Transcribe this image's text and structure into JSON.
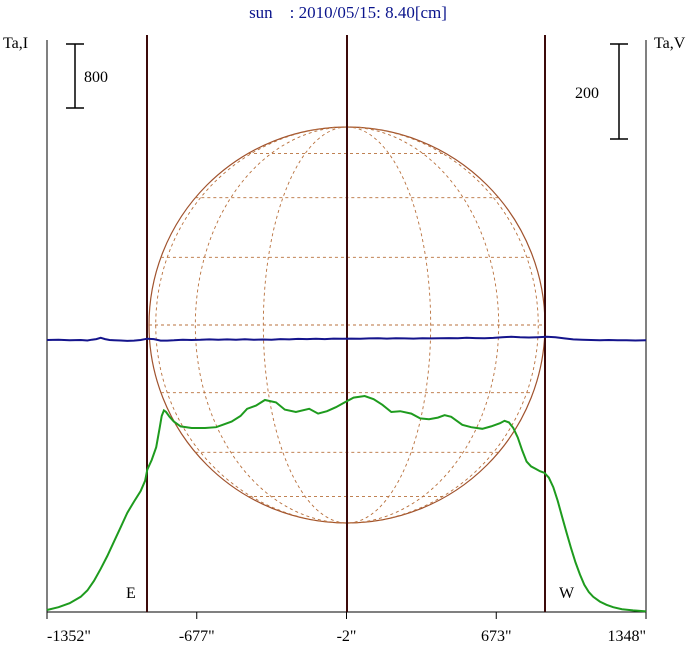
{
  "chart_data": {
    "type": "line",
    "title": "sun    : 2010/05/15: 8.40[cm]",
    "left_axis_label": "Ta,I",
    "right_axis_label": "Ta,V",
    "x_unit": "arcsec",
    "x_ticks": [
      {
        "value": -1352,
        "label": "-1352\""
      },
      {
        "value": -677,
        "label": "-677\""
      },
      {
        "value": -2,
        "label": "-2\""
      },
      {
        "value": 673,
        "label": "673\""
      },
      {
        "value": 1348,
        "label": "1348\""
      }
    ],
    "xlim": [
      -1352,
      1348
    ],
    "scale_bars": [
      {
        "side": "left",
        "label": "800",
        "value": 800
      },
      {
        "side": "right",
        "label": "200",
        "value": 200
      }
    ],
    "limb_markers": [
      {
        "label": "E",
        "x": -894
      },
      {
        "label": "W",
        "x": 894
      }
    ],
    "center_line_x": -2,
    "series": [
      {
        "axis": "I",
        "color": "#1e9b1e",
        "x": [
          -1352,
          -1300,
          -1250,
          -1200,
          -1170,
          -1140,
          -1110,
          -1080,
          -1050,
          -1020,
          -990,
          -960,
          -930,
          -910,
          -900,
          -880,
          -860,
          -845,
          -835,
          -825,
          -815,
          -800,
          -780,
          -750,
          -700,
          -640,
          -590,
          -560,
          -520,
          -480,
          -450,
          -410,
          -370,
          -320,
          -280,
          -230,
          -170,
          -130,
          -90,
          -50,
          -10,
          30,
          80,
          120,
          160,
          200,
          240,
          290,
          330,
          370,
          410,
          440,
          470,
          520,
          560,
          610,
          650,
          690,
          710,
          730,
          750,
          770,
          790,
          810,
          830,
          850,
          870,
          890,
          910,
          930,
          950,
          970,
          990,
          1010,
          1030,
          1050,
          1070,
          1090,
          1110,
          1140,
          1170,
          1200,
          1240,
          1290,
          1348
        ],
        "I": [
          25,
          60,
          110,
          190,
          270,
          390,
          540,
          700,
          880,
          1060,
          1240,
          1380,
          1510,
          1640,
          1780,
          1900,
          2060,
          2290,
          2450,
          2520,
          2500,
          2440,
          2380,
          2320,
          2300,
          2300,
          2310,
          2340,
          2380,
          2450,
          2540,
          2580,
          2650,
          2620,
          2530,
          2500,
          2540,
          2480,
          2510,
          2560,
          2620,
          2680,
          2700,
          2660,
          2590,
          2500,
          2510,
          2480,
          2420,
          2410,
          2430,
          2460,
          2440,
          2340,
          2310,
          2290,
          2320,
          2360,
          2390,
          2370,
          2300,
          2180,
          2020,
          1880,
          1820,
          1790,
          1760,
          1740,
          1680,
          1560,
          1390,
          1190,
          990,
          800,
          620,
          470,
          340,
          250,
          190,
          130,
          90,
          60,
          35,
          20,
          8
        ]
      },
      {
        "axis": "V",
        "color": "#14148c",
        "x": [
          -1352,
          -1300,
          -1250,
          -1200,
          -1170,
          -1150,
          -1130,
          -1110,
          -1090,
          -1070,
          -1050,
          -1020,
          -990,
          -960,
          -930,
          -900,
          -870,
          -840,
          -810,
          -780,
          -740,
          -700,
          -660,
          -620,
          -580,
          -540,
          -500,
          -460,
          -420,
          -380,
          -340,
          -300,
          -260,
          -220,
          -180,
          -140,
          -100,
          -60,
          -20,
          20,
          60,
          100,
          140,
          180,
          220,
          260,
          300,
          340,
          380,
          420,
          460,
          500,
          540,
          580,
          620,
          660,
          700,
          740,
          780,
          820,
          860,
          900,
          940,
          980,
          1020,
          1060,
          1100,
          1140,
          1180,
          1220,
          1260,
          1300,
          1348
        ],
        "V": [
          0,
          0.5,
          -1,
          0,
          -1.5,
          1,
          3,
          7,
          3,
          0,
          -0.5,
          -1.5,
          -3,
          -2,
          0,
          4,
          3,
          -2,
          -2,
          -1,
          1,
          0,
          0.5,
          2,
          1,
          2,
          1,
          2.5,
          0.5,
          1.5,
          0.5,
          3,
          2,
          3.5,
          3,
          4,
          3,
          4.5,
          4,
          4.5,
          4,
          5,
          5.5,
          4.5,
          5.5,
          5,
          4.5,
          5.5,
          5,
          5.5,
          6,
          5.5,
          7,
          6,
          5.5,
          6.5,
          9,
          10,
          8.5,
          8,
          9,
          10,
          9,
          5,
          2,
          1,
          0,
          -0.5,
          0,
          -0.5,
          -1,
          -1.5,
          -1
        ]
      }
    ],
    "scale": {
      "I_per_px": 12.5,
      "V_per_px": 3.17,
      "V_baseline_y": 340
    }
  }
}
